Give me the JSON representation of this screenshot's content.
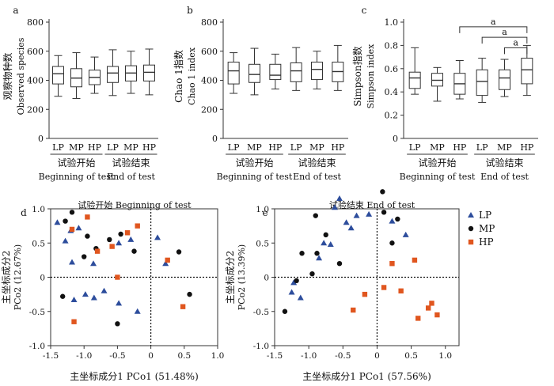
{
  "chart_data": [
    {
      "panel": "a",
      "type": "box",
      "ylabel_cn": "观察物种数",
      "ylabel_en": "Observed species",
      "ylim": [
        0,
        800
      ],
      "yticks": [
        0,
        200,
        400,
        600,
        800
      ],
      "categories": [
        "LP",
        "MP",
        "HP",
        "LP",
        "MP",
        "HP"
      ],
      "groups": [
        {
          "cn": "试验开始",
          "en": "Beginning of test"
        },
        {
          "cn": "试验结束",
          "en": "End of test"
        }
      ],
      "boxes": [
        {
          "min": 290,
          "q1": 375,
          "median": 445,
          "q3": 495,
          "max": 570
        },
        {
          "min": 275,
          "q1": 355,
          "median": 415,
          "q3": 480,
          "max": 590
        },
        {
          "min": 310,
          "q1": 370,
          "median": 420,
          "q3": 470,
          "max": 560
        },
        {
          "min": 295,
          "q1": 385,
          "median": 450,
          "q3": 495,
          "max": 610
        },
        {
          "min": 310,
          "q1": 395,
          "median": 450,
          "q3": 500,
          "max": 600
        },
        {
          "min": 300,
          "q1": 395,
          "median": 455,
          "q3": 505,
          "max": 615
        }
      ]
    },
    {
      "panel": "b",
      "type": "box",
      "ylabel_cn": "Chao 1指数",
      "ylabel_en": "Chao 1 index",
      "ylim": [
        0,
        800
      ],
      "yticks": [
        0,
        200,
        400,
        600,
        800
      ],
      "categories": [
        "LP",
        "MP",
        "HP",
        "LP",
        "MP",
        "HP"
      ],
      "groups": [
        {
          "cn": "试验开始",
          "en": "Beginning of test"
        },
        {
          "cn": "试验结束",
          "en": "End of test"
        }
      ],
      "boxes": [
        {
          "min": 310,
          "q1": 375,
          "median": 465,
          "q3": 525,
          "max": 590
        },
        {
          "min": 300,
          "q1": 385,
          "median": 440,
          "q3": 510,
          "max": 620
        },
        {
          "min": 340,
          "q1": 405,
          "median": 435,
          "q3": 510,
          "max": 580
        },
        {
          "min": 330,
          "q1": 390,
          "median": 465,
          "q3": 520,
          "max": 625
        },
        {
          "min": 340,
          "q1": 405,
          "median": 475,
          "q3": 525,
          "max": 600
        },
        {
          "min": 330,
          "q1": 390,
          "median": 460,
          "q3": 525,
          "max": 640
        }
      ]
    },
    {
      "panel": "c",
      "type": "box",
      "ylabel_cn": "Simpson指数",
      "ylabel_en": "Simpson index",
      "ylim": [
        0,
        1.0
      ],
      "yticks": [
        "0",
        "0.2",
        "0.4",
        "0.6",
        "0.8",
        "1.0"
      ],
      "categories": [
        "LP",
        "MP",
        "HP",
        "LP",
        "MP",
        "HP"
      ],
      "groups": [
        {
          "cn": "试验开始",
          "en": "Beginning of test"
        },
        {
          "cn": "试验结束",
          "en": "End of test"
        }
      ],
      "boxes": [
        {
          "min": 0.38,
          "q1": 0.43,
          "median": 0.52,
          "q3": 0.57,
          "max": 0.78
        },
        {
          "min": 0.32,
          "q1": 0.45,
          "median": 0.5,
          "q3": 0.56,
          "max": 0.61
        },
        {
          "min": 0.34,
          "q1": 0.38,
          "median": 0.47,
          "q3": 0.56,
          "max": 0.67
        },
        {
          "min": 0.31,
          "q1": 0.37,
          "median": 0.49,
          "q3": 0.59,
          "max": 0.69
        },
        {
          "min": 0.36,
          "q1": 0.42,
          "median": 0.52,
          "q3": 0.59,
          "max": 0.68
        },
        {
          "min": 0.37,
          "q1": 0.47,
          "median": 0.59,
          "q3": 0.69,
          "max": 0.8
        }
      ],
      "significance": [
        {
          "from": 2,
          "to": 5,
          "label": "a",
          "y": 0.96
        },
        {
          "from": 3,
          "to": 5,
          "label": "a",
          "y": 0.87
        },
        {
          "from": 4,
          "to": 5,
          "label": "a",
          "y": 0.78
        }
      ]
    },
    {
      "panel": "d",
      "type": "scatter",
      "title": "试验开始  Beginning of test",
      "xlabel": "主坐标成分1 PCo1 (51.48%)",
      "ylabel_cn": "主坐标成分2",
      "ylabel_en": "PCo2 (12.67%)",
      "xlim": [
        -1.5,
        1.0
      ],
      "ylim": [
        -1.0,
        1.0
      ],
      "xticks": [
        "-1.5",
        "-1.0",
        "-0.5",
        "0",
        "0.5",
        "1.0"
      ],
      "yticks": [
        "-1.0",
        "-0.5",
        "0",
        "0.5",
        "1.0"
      ],
      "series": [
        {
          "name": "LP",
          "points": [
            [
              -1.4,
              0.8
            ],
            [
              -1.2,
              0.68
            ],
            [
              -1.08,
              0.72
            ],
            [
              -1.28,
              0.53
            ],
            [
              -0.48,
              0.5
            ],
            [
              -0.3,
              0.55
            ],
            [
              -1.18,
              0.22
            ],
            [
              -0.86,
              0.2
            ],
            [
              0.1,
              0.58
            ],
            [
              0.22,
              0.2
            ],
            [
              -0.7,
              -0.2
            ],
            [
              -0.98,
              -0.25
            ],
            [
              -1.15,
              -0.33
            ],
            [
              -0.85,
              -0.3
            ],
            [
              -0.48,
              -0.38
            ],
            [
              -0.2,
              -0.5
            ]
          ]
        },
        {
          "name": "MP",
          "points": [
            [
              -1.18,
              0.95
            ],
            [
              -1.28,
              0.82
            ],
            [
              -0.95,
              0.6
            ],
            [
              -0.82,
              0.42
            ],
            [
              -1.0,
              0.3
            ],
            [
              -0.62,
              0.55
            ],
            [
              -0.45,
              0.63
            ],
            [
              -0.25,
              0.38
            ],
            [
              0.42,
              0.37
            ],
            [
              0.58,
              -0.25
            ],
            [
              -1.32,
              -0.28
            ],
            [
              -0.5,
              -0.68
            ]
          ]
        },
        {
          "name": "HP",
          "points": [
            [
              -1.18,
              0.7
            ],
            [
              -0.95,
              0.88
            ],
            [
              -0.8,
              0.38
            ],
            [
              -0.58,
              0.45
            ],
            [
              -0.35,
              0.65
            ],
            [
              -0.2,
              0.75
            ],
            [
              0.25,
              0.25
            ],
            [
              -0.5,
              0.0
            ],
            [
              -1.15,
              -0.65
            ],
            [
              0.48,
              -0.43
            ]
          ]
        }
      ]
    },
    {
      "panel": "e",
      "type": "scatter",
      "title": "试验结束  End of test",
      "xlabel": "主坐标成分1 PCo1 (57.56%)",
      "ylabel_cn": "主坐标成分2",
      "ylabel_en": "PCo2 (13.39%)",
      "xlim": [
        -1.5,
        1.2
      ],
      "ylim": [
        -1.0,
        1.0
      ],
      "xticks": [
        "-1.5",
        "-1.0",
        "-0.5",
        "0",
        "0.5",
        "1.0"
      ],
      "yticks": [
        "-1.0",
        "-0.5",
        "0",
        "0.5",
        "1.0"
      ],
      "series": [
        {
          "name": "LP",
          "points": [
            [
              -0.55,
              1.15
            ],
            [
              -0.62,
              1.02
            ],
            [
              -0.3,
              0.9
            ],
            [
              -0.12,
              0.92
            ],
            [
              -0.45,
              0.8
            ],
            [
              -0.38,
              0.72
            ],
            [
              -0.78,
              0.5
            ],
            [
              -0.68,
              0.48
            ],
            [
              -0.85,
              0.28
            ],
            [
              0.22,
              0.82
            ],
            [
              0.42,
              0.62
            ],
            [
              -1.22,
              -0.08
            ],
            [
              -1.25,
              -0.22
            ],
            [
              -1.12,
              -0.3
            ]
          ]
        },
        {
          "name": "MP",
          "points": [
            [
              0.08,
              1.25
            ],
            [
              0.1,
              0.95
            ],
            [
              0.3,
              0.85
            ],
            [
              0.22,
              0.5
            ],
            [
              -0.9,
              0.9
            ],
            [
              -0.75,
              0.62
            ],
            [
              -1.1,
              0.35
            ],
            [
              -0.88,
              0.35
            ],
            [
              -0.55,
              0.2
            ],
            [
              -0.95,
              0.05
            ],
            [
              -1.18,
              -0.05
            ],
            [
              -1.35,
              -0.5
            ]
          ]
        },
        {
          "name": "HP",
          "points": [
            [
              0.22,
              0.2
            ],
            [
              0.55,
              0.25
            ],
            [
              0.1,
              -0.15
            ],
            [
              0.35,
              -0.2
            ],
            [
              -0.18,
              -0.25
            ],
            [
              -0.35,
              -0.48
            ],
            [
              0.8,
              -0.38
            ],
            [
              0.75,
              -0.45
            ],
            [
              0.6,
              -0.6
            ],
            [
              0.88,
              -0.55
            ]
          ]
        }
      ]
    }
  ]
}
